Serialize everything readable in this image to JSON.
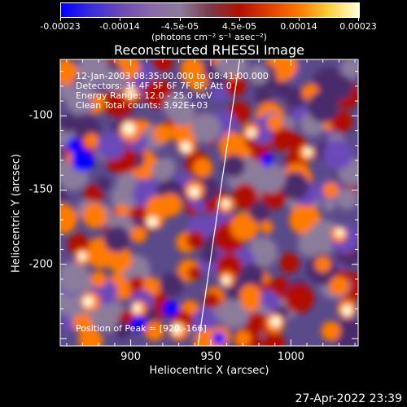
{
  "colorbar": {
    "ticks": [
      "-0.00023",
      "-0.00014",
      "-4.5e-05",
      "4.5e-05",
      "0.00014",
      "0.00023"
    ],
    "units": "(photons cm⁻² s⁻¹ asec⁻²)"
  },
  "chart_data": {
    "type": "heatmap",
    "title": "Reconstructed RHESSI Image",
    "xlabel": "Heliocentric X (arcsec)",
    "ylabel": "Heliocentric Y (arcsec)",
    "xlim": [
      856,
      1042
    ],
    "ylim": [
      -255,
      -62
    ],
    "x_ticks": [
      900,
      950,
      1000
    ],
    "y_ticks": [
      -100,
      -150,
      -200
    ],
    "zlim": [
      -0.00023,
      0.00023
    ],
    "colormap": [
      "#0000ff",
      "#6a4ab8",
      "#8b7c9c",
      "#b01000",
      "#ff7a00",
      "#ffffd8"
    ],
    "limb_line": [
      {
        "x": 942,
        "y": -255
      },
      {
        "x": 968,
        "y": -62
      }
    ],
    "peak": {
      "x": 920,
      "y": -166
    }
  },
  "annotations": [
    "12-Jan-2003 08:35:00.000 to 08:41:00.000",
    "Detectors: 3F 4F 5F 6F 7F 8F, Att 0",
    "Energy Range: 12.0 - 25.0 keV",
    "Clean     Total counts: 3.92E+03"
  ],
  "peak_label": "Position of Peak = [920,-166]",
  "timestamp": "27-Apr-2022 23:39"
}
